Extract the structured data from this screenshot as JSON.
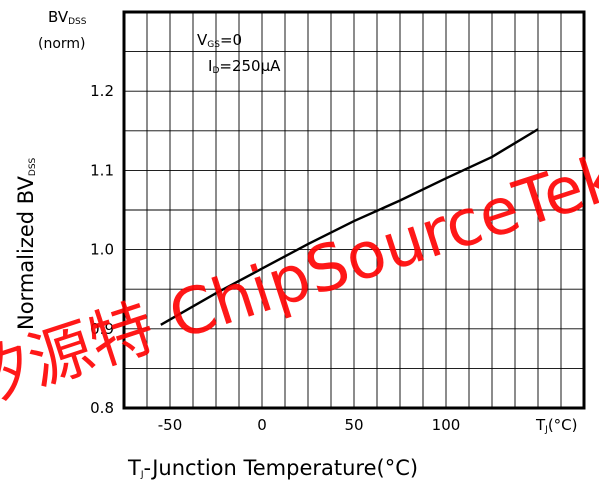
{
  "chart_data": {
    "type": "line",
    "top_label": {
      "main": "BV",
      "sub": "DSS",
      "unit": "(norm)"
    },
    "ylabel": {
      "main": "Normalized BV",
      "sub": "DSS"
    },
    "xlabel": {
      "pre": "T",
      "sub": "J",
      "post": "-Junction Temperature(°C)"
    },
    "xaxis_end_label": {
      "pre": "T",
      "sub": "J",
      "post": "(°C)"
    },
    "conditions": [
      {
        "pre": "V",
        "sub": "GS",
        "post": "=0"
      },
      {
        "pre": "I",
        "sub": "D",
        "post": "=250μA"
      }
    ],
    "xlim": [
      -75,
      175
    ],
    "ylim": [
      0.8,
      1.3
    ],
    "x_ticks": [
      -50,
      0,
      50,
      100
    ],
    "y_ticks": [
      0.8,
      0.9,
      1.0,
      1.1,
      1.2
    ],
    "x_tick_labels": [
      "-50",
      "0",
      "50",
      "100"
    ],
    "y_tick_labels": [
      "0.8",
      "0.9",
      "1.0",
      "1.1",
      "1.2"
    ],
    "grid": true,
    "series": [
      {
        "color": "#000000",
        "x": [
          -55,
          -25,
          0,
          25,
          50,
          75,
          100,
          125,
          150
        ],
        "y": [
          0.905,
          0.945,
          0.976,
          1.007,
          1.036,
          1.062,
          1.09,
          1.117,
          1.152
        ]
      }
    ],
    "watermark": {
      "text": "矽源特 ChipSourceTek",
      "color": "#ff0000"
    }
  }
}
